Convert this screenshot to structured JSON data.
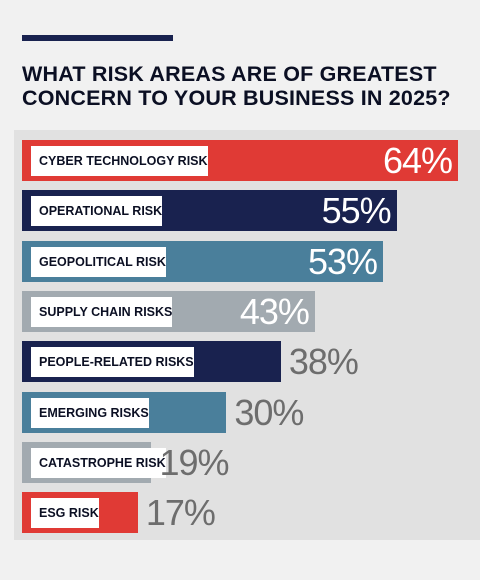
{
  "title": "WHAT RISK AREAS ARE OF GREATEST CONCERN TO YOUR BUSINESS IN 2025?",
  "colors": {
    "background": "#f1f1f1",
    "panel": "#e1e1e1",
    "accent_rule": "#19224f",
    "red": "#e03a35",
    "navy": "#19224f",
    "steel_blue": "#4a7f9b",
    "gray": "#a2aab0"
  },
  "chart_data": {
    "type": "bar",
    "orientation": "horizontal",
    "title": "WHAT RISK AREAS ARE OF GREATEST CONCERN TO YOUR BUSINESS IN 2025?",
    "unit": "%",
    "xlim": [
      0,
      64
    ],
    "grid": false,
    "legend": "none",
    "categories": [
      "CYBER TECHNOLOGY RISK",
      "OPERATIONAL RISK",
      "GEOPOLITICAL RISK",
      "SUPPLY CHAIN RISKS",
      "PEOPLE-RELATED RISKS",
      "EMERGING RISKS",
      "CATASTROPHE RISK",
      "ESG RISK"
    ],
    "values": [
      64,
      55,
      53,
      43,
      38,
      30,
      19,
      17
    ],
    "value_labels": [
      "64%",
      "55%",
      "53%",
      "43%",
      "38%",
      "30%",
      "19%",
      "17%"
    ],
    "bar_colors": [
      "#e03a35",
      "#19224f",
      "#4a7f9b",
      "#a2aab0",
      "#19224f",
      "#4a7f9b",
      "#a2aab0",
      "#e03a35"
    ]
  }
}
